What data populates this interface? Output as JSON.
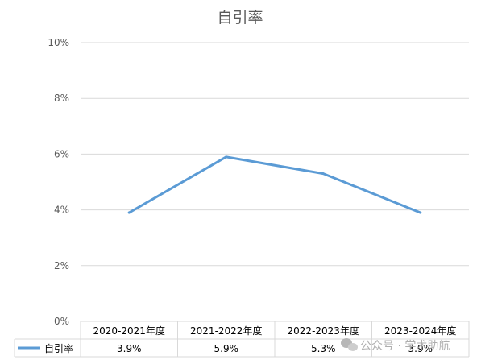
{
  "chart_data": {
    "type": "line",
    "title": "自引率",
    "categories": [
      "2020-2021年度",
      "2021-2022年度",
      "2022-2023年度",
      "2023-2024年度"
    ],
    "series": [
      {
        "name": "自引率",
        "values": [
          3.9,
          5.9,
          5.3,
          3.9
        ],
        "color": "#5b9bd5"
      }
    ],
    "data_labels": [
      "3.9%",
      "5.9%",
      "5.3%",
      "3.9%"
    ],
    "ylim": [
      0,
      10
    ],
    "yticks": [
      "0%",
      "2%",
      "4%",
      "6%",
      "8%",
      "10%"
    ],
    "grid": true,
    "legend": "data-table-left"
  },
  "watermark": {
    "text": "公众号 · 学术助航",
    "icon": "wechat-icon"
  }
}
